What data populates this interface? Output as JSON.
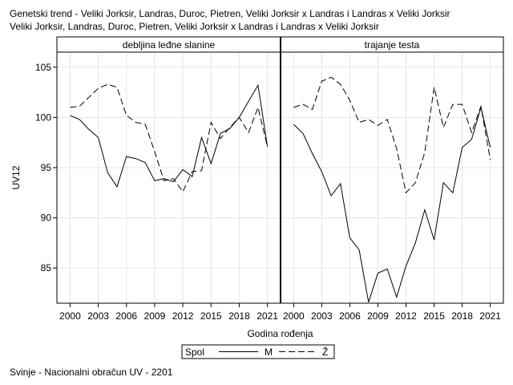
{
  "title": {
    "line1": "Genetski trend - Veliki Jorksir, Landras, Duroc, Pietren, Veliki Jorksir x Landras i Landras x Veliki Jorksir",
    "line2": "Veliki Jorksir, Landras, Duroc, Pietren, Veliki Jorksir x Landras i Landras x Veliki Jorksir"
  },
  "footnote": "Svinje - Nacionalni obračun UV - 2201",
  "chart_data": {
    "type": "line",
    "ylabel": "UV12",
    "xlabel": "Godina rođenja",
    "ylim": [
      81.5,
      106.5
    ],
    "xlim": [
      1998.6,
      2022.4
    ],
    "x_ticks": [
      2000,
      2003,
      2006,
      2009,
      2012,
      2015,
      2018,
      2021
    ],
    "y_ticks": [
      85,
      90,
      95,
      100,
      105
    ],
    "grid": true,
    "legend": {
      "position": "bottom-center",
      "title": "Spol",
      "entries": [
        {
          "label": "M",
          "style": "solid"
        },
        {
          "label": "Ž",
          "style": "dashed"
        }
      ]
    },
    "panels": [
      {
        "title": "debljina leđne slanine",
        "x": [
          2000,
          2001,
          2002,
          2003,
          2004,
          2005,
          2006,
          2007,
          2008,
          2009,
          2010,
          2011,
          2012,
          2013,
          2014,
          2015,
          2016,
          2017,
          2018,
          2019,
          2020,
          2021
        ],
        "series": [
          {
            "name": "M",
            "style": "solid",
            "values": [
              100.2,
              99.8,
              98.8,
              98.0,
              94.5,
              93.1,
              96.1,
              95.9,
              95.5,
              93.7,
              93.9,
              93.6,
              94.8,
              94.1,
              98.0,
              95.4,
              98.4,
              98.9,
              100.0,
              101.6,
              103.2,
              97.1
            ]
          },
          {
            "name": "Ž",
            "style": "dashed",
            "values": [
              101.0,
              101.1,
              102.0,
              102.9,
              103.3,
              103.0,
              100.2,
              99.5,
              99.3,
              96.6,
              93.7,
              93.9,
              92.6,
              94.6,
              94.7,
              99.5,
              97.9,
              99.0,
              100.0,
              98.5,
              101.0,
              97.1
            ]
          }
        ]
      },
      {
        "title": "trajanje testa",
        "x": [
          2000,
          2001,
          2002,
          2003,
          2004,
          2005,
          2006,
          2007,
          2008,
          2009,
          2010,
          2011,
          2012,
          2013,
          2014,
          2015,
          2016,
          2017,
          2018,
          2019,
          2020,
          2021
        ],
        "series": [
          {
            "name": "M",
            "style": "solid",
            "values": [
              99.3,
              98.4,
              96.4,
              94.6,
              92.2,
              93.4,
              88.0,
              86.8,
              81.6,
              84.5,
              84.9,
              82.1,
              85.2,
              87.5,
              90.8,
              87.8,
              93.5,
              92.5,
              97.0,
              97.8,
              101.0,
              97.0
            ]
          },
          {
            "name": "Ž",
            "style": "dashed",
            "values": [
              101.0,
              101.3,
              100.8,
              103.6,
              104.0,
              103.3,
              101.7,
              99.5,
              99.8,
              99.2,
              99.8,
              96.9,
              92.5,
              93.5,
              96.5,
              103.0,
              99.0,
              101.3,
              101.3,
              98.5,
              101.1,
              95.8
            ]
          }
        ]
      }
    ]
  }
}
